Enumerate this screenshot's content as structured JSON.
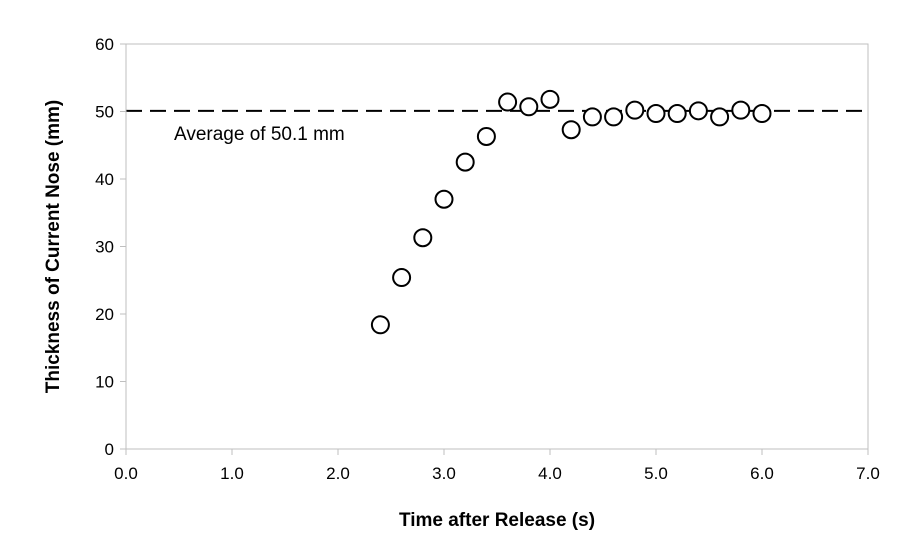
{
  "chart_data": {
    "type": "scatter",
    "title": "",
    "xlabel": "Time after Release (s)",
    "ylabel": "Thickness of Current Nose (mm)",
    "xlim": [
      0,
      7
    ],
    "ylim": [
      0,
      60
    ],
    "x_ticks": [
      "0.0",
      "1.0",
      "2.0",
      "3.0",
      "4.0",
      "5.0",
      "6.0",
      "7.0"
    ],
    "y_ticks": [
      "0",
      "10",
      "20",
      "30",
      "40",
      "50",
      "60"
    ],
    "grid": false,
    "legend": "none",
    "marker": "open-circle",
    "series": [
      {
        "x": [
          2.4,
          2.6,
          2.8,
          3.0,
          3.2,
          3.4,
          3.6,
          3.8,
          4.0,
          4.2,
          4.4,
          4.6,
          4.8,
          5.0,
          5.2,
          5.4,
          5.6,
          5.8,
          6.0
        ],
        "y": [
          18.4,
          25.4,
          31.3,
          37.0,
          42.5,
          46.3,
          51.4,
          50.7,
          51.8,
          47.3,
          49.2,
          49.2,
          50.2,
          49.7,
          49.7,
          50.1,
          49.2,
          50.2,
          49.7
        ]
      }
    ],
    "reference_line": {
      "y": 50.1,
      "style": "dashed"
    },
    "annotations": [
      {
        "text": "Average of 50.1 mm"
      }
    ]
  }
}
